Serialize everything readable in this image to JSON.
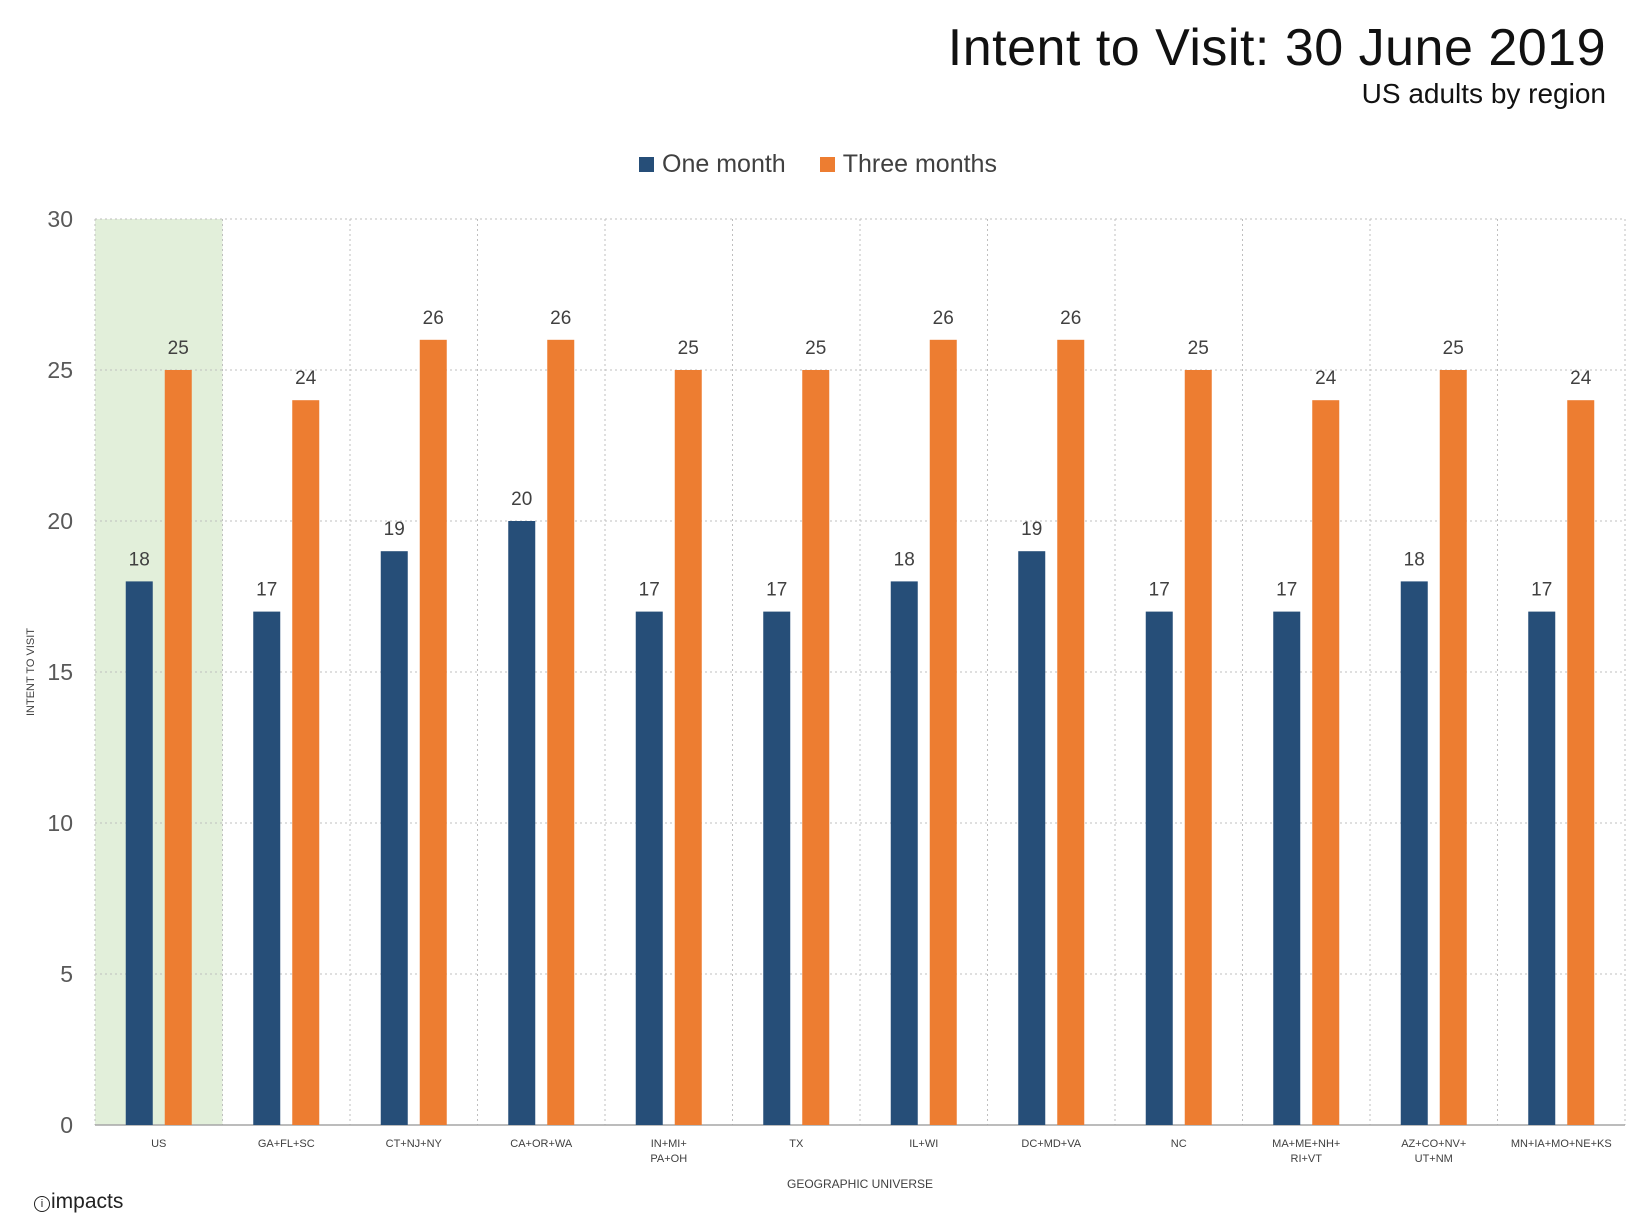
{
  "header": {
    "title": "Intent to Visit: 30 June 2019",
    "subtitle": "US adults by region"
  },
  "footer": {
    "logo_text": "impacts"
  },
  "colors": {
    "one_month": "#264e78",
    "three_months": "#ed7d31",
    "highlight": "#e2efda",
    "grid": "#bfbfbf"
  },
  "chart_data": {
    "type": "bar",
    "categories": [
      [
        "US"
      ],
      [
        "GA+FL+SC"
      ],
      [
        "CT+NJ+NY"
      ],
      [
        "CA+OR+WA"
      ],
      [
        "IN+MI+",
        "PA+OH"
      ],
      [
        "TX"
      ],
      [
        "IL+WI"
      ],
      [
        "DC+MD+VA"
      ],
      [
        "NC"
      ],
      [
        "MA+ME+NH+",
        "RI+VT"
      ],
      [
        "AZ+CO+NV+",
        "UT+NM"
      ],
      [
        "MN+IA+MO+NE+KS"
      ]
    ],
    "series": [
      {
        "name": "One month",
        "values": [
          18,
          17,
          19,
          20,
          17,
          17,
          18,
          19,
          17,
          17,
          18,
          17
        ]
      },
      {
        "name": "Three months",
        "values": [
          25,
          24,
          26,
          26,
          25,
          25,
          26,
          26,
          25,
          24,
          25,
          24
        ]
      }
    ],
    "xlabel": "GEOGRAPHIC UNIVERSE",
    "ylabel": "INTENT TO VISIT",
    "ylim": [
      0,
      30
    ],
    "yticks": [
      0,
      5,
      10,
      15,
      20,
      25,
      30
    ],
    "highlighted_category": "US",
    "grid": true,
    "legend_position": "top-center"
  }
}
